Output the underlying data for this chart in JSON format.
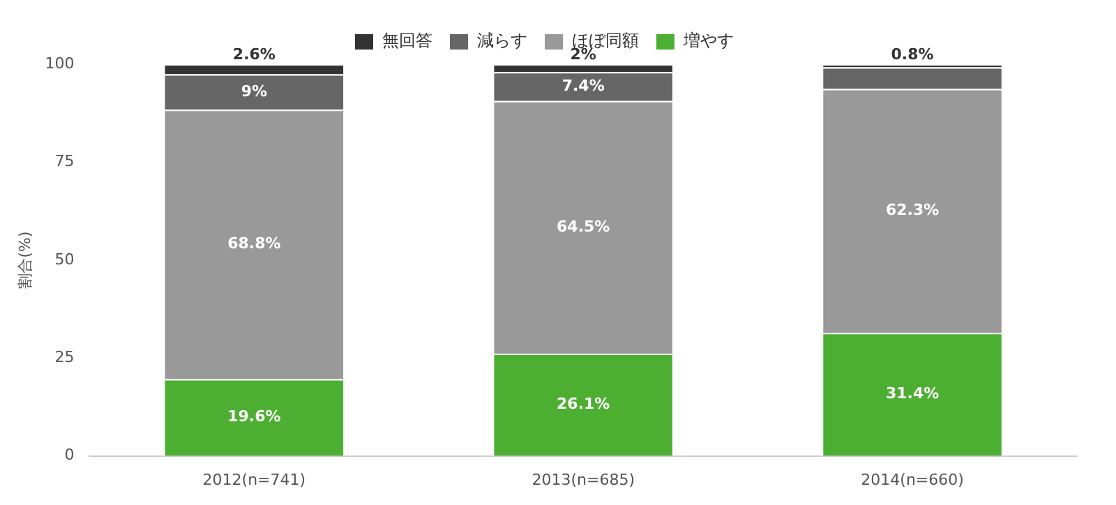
{
  "chart_data": {
    "type": "bar",
    "stacked": true,
    "categories": [
      "2012(n=741)",
      "2013(n=685)",
      "2014(n=660)"
    ],
    "ylabel": "割合(%)",
    "ylim": [
      0,
      100
    ],
    "yticks": [
      0,
      25,
      50,
      75,
      100
    ],
    "grid": false,
    "legend": "top",
    "series": [
      {
        "name": "増やす",
        "color": "#4caf32",
        "values": [
          19.6,
          26.1,
          31.4
        ],
        "value_labels": [
          "19.6%",
          "26.1%",
          "31.4%"
        ]
      },
      {
        "name": "ほぼ同額",
        "color": "#999999",
        "values": [
          68.8,
          64.5,
          62.3
        ],
        "value_labels": [
          "68.8%",
          "64.5%",
          "62.3%"
        ]
      },
      {
        "name": "減らす",
        "color": "#666666",
        "values": [
          9,
          7.4,
          5.5
        ],
        "value_labels": [
          "9%",
          "7.4%",
          null
        ]
      },
      {
        "name": "無回答",
        "color": "#333333",
        "values": [
          2.6,
          2,
          0.8
        ],
        "value_labels": [
          "2.6%",
          "2%",
          "0.8%"
        ]
      }
    ]
  }
}
